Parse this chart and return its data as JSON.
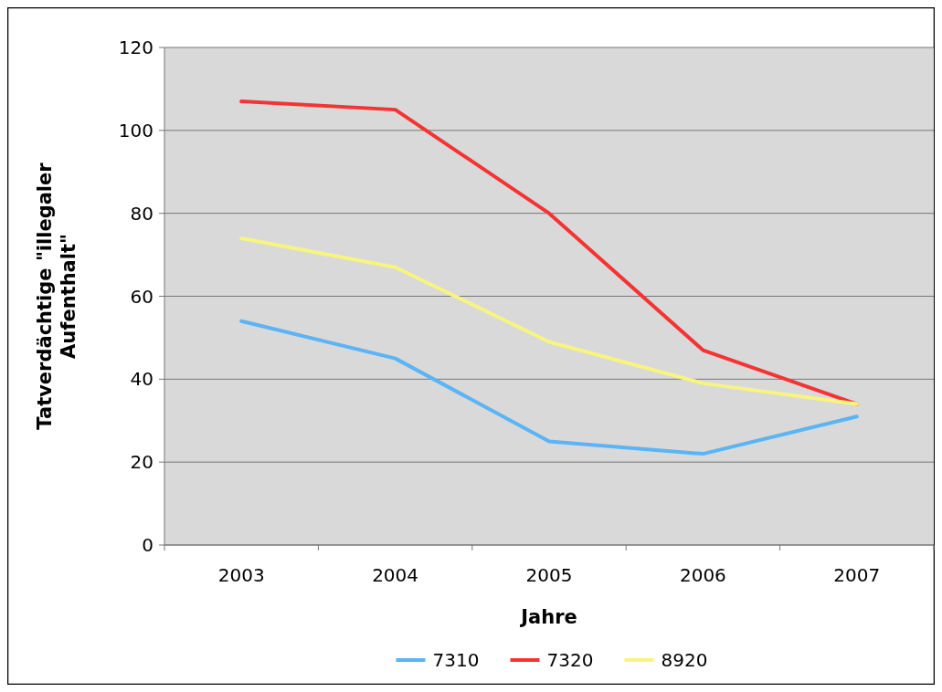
{
  "chart_data": {
    "type": "line",
    "xlabel": "Jahre",
    "ylabel": "Tatverdächtige \"illegaler\nAufenthalt\"",
    "categories": [
      "2003",
      "2004",
      "2005",
      "2006",
      "2007"
    ],
    "series": [
      {
        "name": "7310",
        "color": "#5ab4f5",
        "values": [
          54,
          45,
          25,
          22,
          31
        ]
      },
      {
        "name": "7320",
        "color": "#f53333",
        "values": [
          107,
          105,
          80,
          47,
          34
        ]
      },
      {
        "name": "8920",
        "color": "#f7f480",
        "values": [
          74,
          67,
          49,
          39,
          34
        ]
      }
    ],
    "ylim": [
      0,
      120
    ],
    "yticks": [
      0,
      20,
      40,
      60,
      80,
      100,
      120
    ],
    "grid": "y",
    "legend": "bottom",
    "marker": "none",
    "line_style": "solid"
  }
}
